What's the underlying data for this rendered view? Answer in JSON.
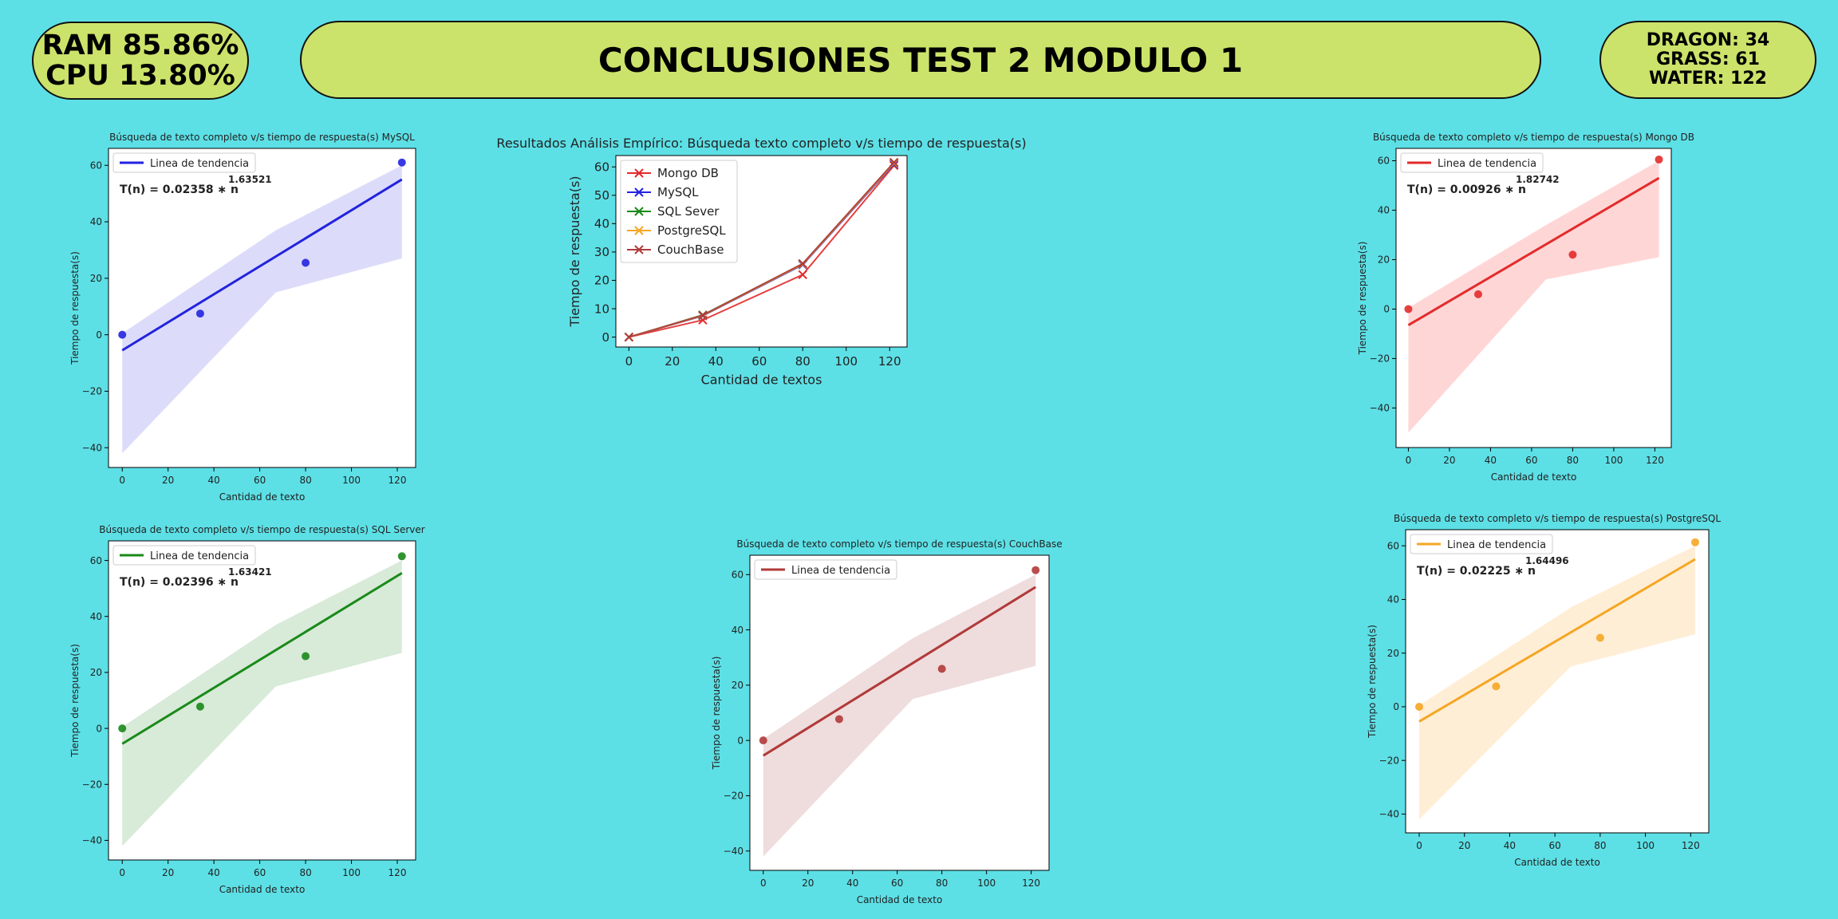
{
  "header": {
    "ram": "RAM 85.86%",
    "cpu": "CPU 13.80%",
    "title": "CONCLUSIONES TEST 2 MODULO 1",
    "dragon": "DRAGON: 34",
    "grass": "GRASS: 61",
    "water": "WATER: 122"
  },
  "chart_data": [
    {
      "id": "main",
      "type": "line",
      "title": "Resultados Análisis Empírico: Búsqueda texto completo v/s tiempo de respuesta(s)",
      "xlabel": "Cantidad de textos",
      "ylabel": "Tiempo de respuesta(s)",
      "xlim": [
        -6,
        128
      ],
      "ylim": [
        -3.5,
        64
      ],
      "xticks": [
        0,
        20,
        40,
        60,
        80,
        100,
        120
      ],
      "yticks": [
        0,
        10,
        20,
        30,
        40,
        50,
        60
      ],
      "legend_position": "top-left",
      "x": [
        0,
        34,
        80,
        122
      ],
      "series": [
        {
          "name": "Mongo DB",
          "color": "#e32b2b",
          "values": [
            0,
            6,
            22,
            60.5
          ]
        },
        {
          "name": "MySQL",
          "color": "#2323e0",
          "values": [
            0,
            7.5,
            25.5,
            61
          ]
        },
        {
          "name": "SQL Sever",
          "color": "#198a19",
          "values": [
            0,
            7.8,
            25.8,
            61.5
          ]
        },
        {
          "name": "PostgreSQL",
          "color": "#f5a623",
          "values": [
            0,
            7.6,
            25.7,
            61.3
          ]
        },
        {
          "name": "CouchBase",
          "color": "#b03a3a",
          "values": [
            0,
            7.7,
            25.9,
            61.6
          ]
        }
      ]
    },
    {
      "id": "mysql",
      "type": "scatter",
      "title": "Búsqueda de texto completo v/s tiempo de respuesta(s) MySQL",
      "xlabel": "Cantidad de texto",
      "ylabel": "Tiempo de respuesta(s)",
      "legend": "Linea de tendencia",
      "legend_position": "top-left",
      "equation_prefix": "T(n) = 0.02358 ∗ n",
      "exponent": "1.63521",
      "color": "#2323e0",
      "band_color": "#dcdcfa",
      "xlim": [
        -6,
        128
      ],
      "ylim": [
        -47,
        66
      ],
      "xticks": [
        0,
        20,
        40,
        60,
        80,
        100,
        120
      ],
      "yticks": [
        -40,
        -20,
        0,
        20,
        40,
        60
      ],
      "points": {
        "x": [
          0,
          34,
          80,
          122
        ],
        "y": [
          0,
          7.5,
          25.5,
          61
        ]
      },
      "trend": {
        "x": [
          0,
          122
        ],
        "y": [
          -5.5,
          55
        ]
      },
      "band_upper": {
        "x": [
          0,
          67,
          122
        ],
        "y": [
          0.5,
          37,
          60
        ]
      },
      "band_lower": {
        "x": [
          0,
          67,
          122
        ],
        "y": [
          -42,
          15,
          27
        ]
      }
    },
    {
      "id": "mongo",
      "type": "scatter",
      "title": "Búsqueda de texto completo v/s tiempo de respuesta(s) Mongo DB",
      "xlabel": "Cantidad de texto",
      "ylabel": "Tiempo de respuesta(s)",
      "legend": "Linea de tendencia",
      "legend_position": "top-left",
      "equation_prefix": "T(n) = 0.00926 ∗ n",
      "exponent": "1.82742",
      "color": "#e32b2b",
      "band_color": "#ffd6d6",
      "xlim": [
        -6,
        128
      ],
      "ylim": [
        -56,
        65
      ],
      "xticks": [
        0,
        20,
        40,
        60,
        80,
        100,
        120
      ],
      "yticks": [
        -40,
        -20,
        0,
        20,
        40,
        60
      ],
      "points": {
        "x": [
          0,
          34,
          80,
          122
        ],
        "y": [
          0,
          6,
          22,
          60.5
        ]
      },
      "trend": {
        "x": [
          0,
          122
        ],
        "y": [
          -6.5,
          53
        ]
      },
      "band_upper": {
        "x": [
          0,
          67,
          122
        ],
        "y": [
          0.5,
          34,
          60
        ]
      },
      "band_lower": {
        "x": [
          0,
          67,
          122
        ],
        "y": [
          -50,
          12,
          21
        ]
      }
    },
    {
      "id": "sqlserver",
      "type": "scatter",
      "title": "Búsqueda de texto completo v/s tiempo de respuesta(s) SQL Server",
      "xlabel": "Cantidad de texto",
      "ylabel": "Tiempo de respuesta(s)",
      "legend": "Linea de tendencia",
      "legend_position": "top-left",
      "equation_prefix": "T(n) = 0.02396 ∗ n",
      "exponent": "1.63421",
      "color": "#198a19",
      "band_color": "#d8ead8",
      "xlim": [
        -6,
        128
      ],
      "ylim": [
        -47,
        67
      ],
      "xticks": [
        0,
        20,
        40,
        60,
        80,
        100,
        120
      ],
      "yticks": [
        -40,
        -20,
        0,
        20,
        40,
        60
      ],
      "points": {
        "x": [
          0,
          34,
          80,
          122
        ],
        "y": [
          0,
          7.8,
          25.8,
          61.5
        ]
      },
      "trend": {
        "x": [
          0,
          122
        ],
        "y": [
          -5.5,
          55.5
        ]
      },
      "band_upper": {
        "x": [
          0,
          67,
          122
        ],
        "y": [
          0.5,
          37,
          60
        ]
      },
      "band_lower": {
        "x": [
          0,
          67,
          122
        ],
        "y": [
          -42,
          15,
          27
        ]
      }
    },
    {
      "id": "couchbase",
      "type": "scatter",
      "title": "Búsqueda de texto completo v/s tiempo de respuesta(s) CouchBase",
      "xlabel": "Cantidad de texto",
      "ylabel": "Tiempo de respuesta(s)",
      "legend": "Linea de tendencia",
      "legend_position": "top-left",
      "color": "#b03a3a",
      "band_color": "#efdcdc",
      "xlim": [
        -6,
        128
      ],
      "ylim": [
        -47,
        67
      ],
      "xticks": [
        0,
        20,
        40,
        60,
        80,
        100,
        120
      ],
      "yticks": [
        -40,
        -20,
        0,
        20,
        40,
        60
      ],
      "points": {
        "x": [
          0,
          34,
          80,
          122
        ],
        "y": [
          0,
          7.7,
          25.9,
          61.6
        ]
      },
      "trend": {
        "x": [
          0,
          122
        ],
        "y": [
          -5.5,
          55.5
        ]
      },
      "band_upper": {
        "x": [
          0,
          67,
          122
        ],
        "y": [
          0.5,
          37,
          60
        ]
      },
      "band_lower": {
        "x": [
          0,
          67,
          122
        ],
        "y": [
          -42,
          15,
          27
        ]
      }
    },
    {
      "id": "postgres",
      "type": "scatter",
      "title": "Búsqueda de texto completo v/s tiempo de respuesta(s) PostgreSQL",
      "xlabel": "Cantidad de texto",
      "ylabel": "Tiempo de respuesta(s)",
      "legend": "Linea de tendencia",
      "legend_position": "top-left",
      "equation_prefix": "T(n) = 0.02225 ∗ n",
      "exponent": "1.64496",
      "color": "#f5a623",
      "band_color": "#ffeed6",
      "xlim": [
        -6,
        128
      ],
      "ylim": [
        -47,
        66
      ],
      "xticks": [
        0,
        20,
        40,
        60,
        80,
        100,
        120
      ],
      "yticks": [
        -40,
        -20,
        0,
        20,
        40,
        60
      ],
      "points": {
        "x": [
          0,
          34,
          80,
          122
        ],
        "y": [
          0,
          7.6,
          25.7,
          61.3
        ]
      },
      "trend": {
        "x": [
          0,
          122
        ],
        "y": [
          -5.5,
          55
        ]
      },
      "band_upper": {
        "x": [
          0,
          67,
          122
        ],
        "y": [
          0.5,
          37,
          60
        ]
      },
      "band_lower": {
        "x": [
          0,
          67,
          122
        ],
        "y": [
          -42,
          15,
          27
        ]
      }
    }
  ]
}
